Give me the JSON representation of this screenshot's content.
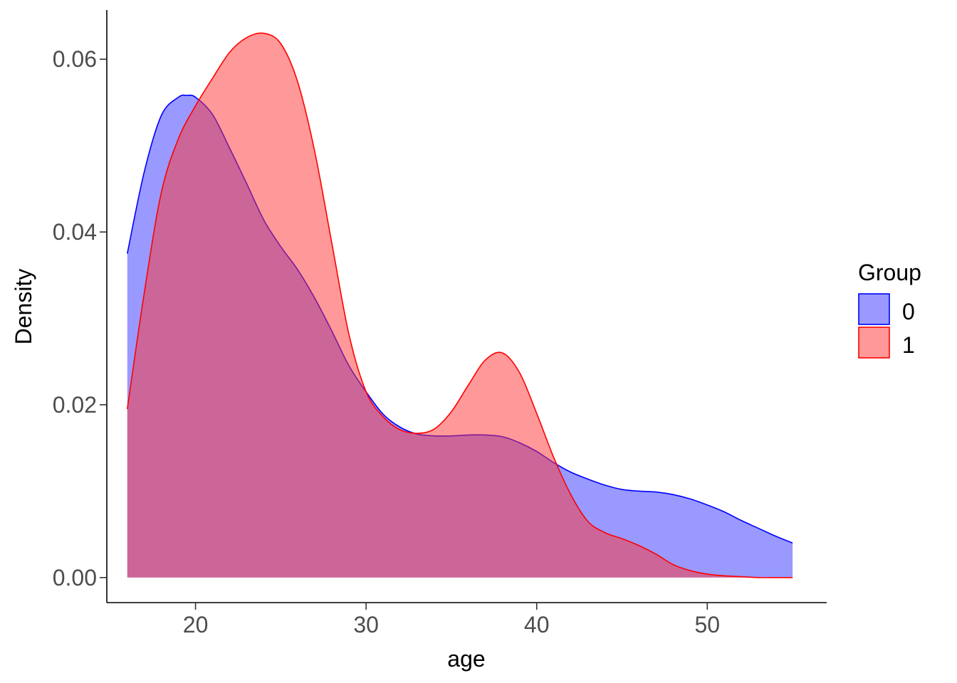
{
  "chart_data": {
    "type": "area",
    "title": "",
    "xlabel": "age",
    "ylabel": "Density",
    "xlim": [
      14.8,
      57.0
    ],
    "ylim": [
      -0.0029,
      0.0657
    ],
    "x_ticks": [
      20,
      30,
      40,
      50
    ],
    "y_ticks": [
      0.0,
      0.02,
      0.04,
      0.06
    ],
    "x_tick_labels": [
      "20",
      "30",
      "40",
      "50"
    ],
    "y_tick_labels": [
      "0.00",
      "0.02",
      "0.04",
      "0.06"
    ],
    "grid": false,
    "legend": {
      "title": "Group",
      "position": "right"
    },
    "series": [
      {
        "name": "0",
        "line_color": "#0000ff",
        "fill_color": "#3333ff",
        "fill_opacity": 0.5,
        "x": [
          16,
          17,
          18,
          19,
          19.5,
          20,
          21,
          22,
          23,
          24,
          25,
          26,
          27,
          28,
          29,
          30,
          31,
          32,
          33,
          34,
          35,
          36,
          37,
          38,
          39,
          40,
          41,
          42,
          43,
          44,
          45,
          46,
          47,
          48,
          49,
          50,
          51,
          52,
          53,
          54,
          55
        ],
        "y": [
          0.0375,
          0.047,
          0.0535,
          0.0556,
          0.0558,
          0.0556,
          0.0536,
          0.0497,
          0.0456,
          0.0414,
          0.0383,
          0.0356,
          0.0323,
          0.0285,
          0.0245,
          0.0215,
          0.0189,
          0.0174,
          0.0166,
          0.0164,
          0.0164,
          0.0165,
          0.0165,
          0.0163,
          0.0156,
          0.0146,
          0.0133,
          0.0122,
          0.0114,
          0.0107,
          0.0102,
          0.01,
          0.0099,
          0.0096,
          0.0091,
          0.0084,
          0.0076,
          0.0066,
          0.0057,
          0.0048,
          0.004
        ]
      },
      {
        "name": "1",
        "line_color": "#ff0000",
        "fill_color": "#ff3333",
        "fill_opacity": 0.5,
        "x": [
          16,
          17,
          18,
          19,
          20,
          21,
          22,
          23,
          24,
          25,
          26,
          27,
          28,
          29,
          30,
          31,
          32,
          33,
          34,
          35,
          36,
          37,
          38,
          39,
          40,
          41,
          42,
          43,
          44,
          45,
          46,
          47,
          48,
          49,
          50,
          51,
          52,
          53,
          54,
          55
        ],
        "y": [
          0.0195,
          0.033,
          0.0446,
          0.0508,
          0.0546,
          0.0578,
          0.0608,
          0.0625,
          0.063,
          0.0618,
          0.0573,
          0.0492,
          0.0386,
          0.0281,
          0.0215,
          0.0186,
          0.0171,
          0.0167,
          0.0172,
          0.0192,
          0.0223,
          0.0252,
          0.026,
          0.0237,
          0.019,
          0.0139,
          0.0096,
          0.0065,
          0.0052,
          0.0045,
          0.0037,
          0.0027,
          0.0015,
          0.0008,
          0.0004,
          0.0002,
          0.0001,
          0.0,
          0.0,
          0.0
        ]
      }
    ]
  }
}
